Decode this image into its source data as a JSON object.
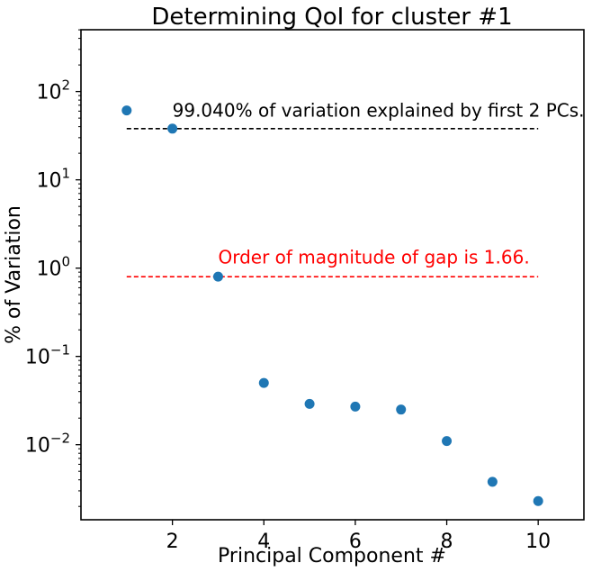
{
  "chart_data": {
    "type": "scatter",
    "title": "Determining QoI for cluster #1",
    "xlabel": "Principal Component #",
    "ylabel": "% of Variation",
    "xlim": [
      0,
      11
    ],
    "ylim_log10": [
      -2.85,
      2.7
    ],
    "yscale": "log",
    "x_ticks": [
      2,
      4,
      6,
      8,
      10
    ],
    "x_tick_labels": [
      "2",
      "4",
      "6",
      "8",
      "10"
    ],
    "y_ticks_exp": [
      2,
      1,
      0,
      -1,
      -2
    ],
    "y_tick_labels": [
      {
        "base": "10",
        "exp": "2"
      },
      {
        "base": "10",
        "exp": "1"
      },
      {
        "base": "10",
        "exp": "0"
      },
      {
        "base": "10",
        "exp": "−1"
      },
      {
        "base": "10",
        "exp": "−2"
      }
    ],
    "grid": false,
    "series_color": "#1f77b4",
    "x": [
      1,
      2,
      3,
      4,
      5,
      6,
      7,
      8,
      9,
      10
    ],
    "y": [
      61.0,
      38.0,
      0.8,
      0.05,
      0.029,
      0.027,
      0.025,
      0.011,
      0.0038,
      0.0023
    ],
    "reference_lines": [
      {
        "y": 38.0,
        "x_range": [
          1,
          10
        ],
        "color": "#000000",
        "style": "dashed"
      },
      {
        "y": 0.8,
        "x_range": [
          1,
          10
        ],
        "color": "#ff0000",
        "style": "dashed"
      }
    ],
    "annotations": [
      {
        "text": "99.040% of variation explained by first 2 PCs.",
        "x": 2,
        "y": 60.0,
        "color": "#000000"
      },
      {
        "text": "Order of magnitude of gap is 1.66.",
        "x": 3,
        "y": 1.3,
        "color": "#ff0000"
      }
    ]
  }
}
